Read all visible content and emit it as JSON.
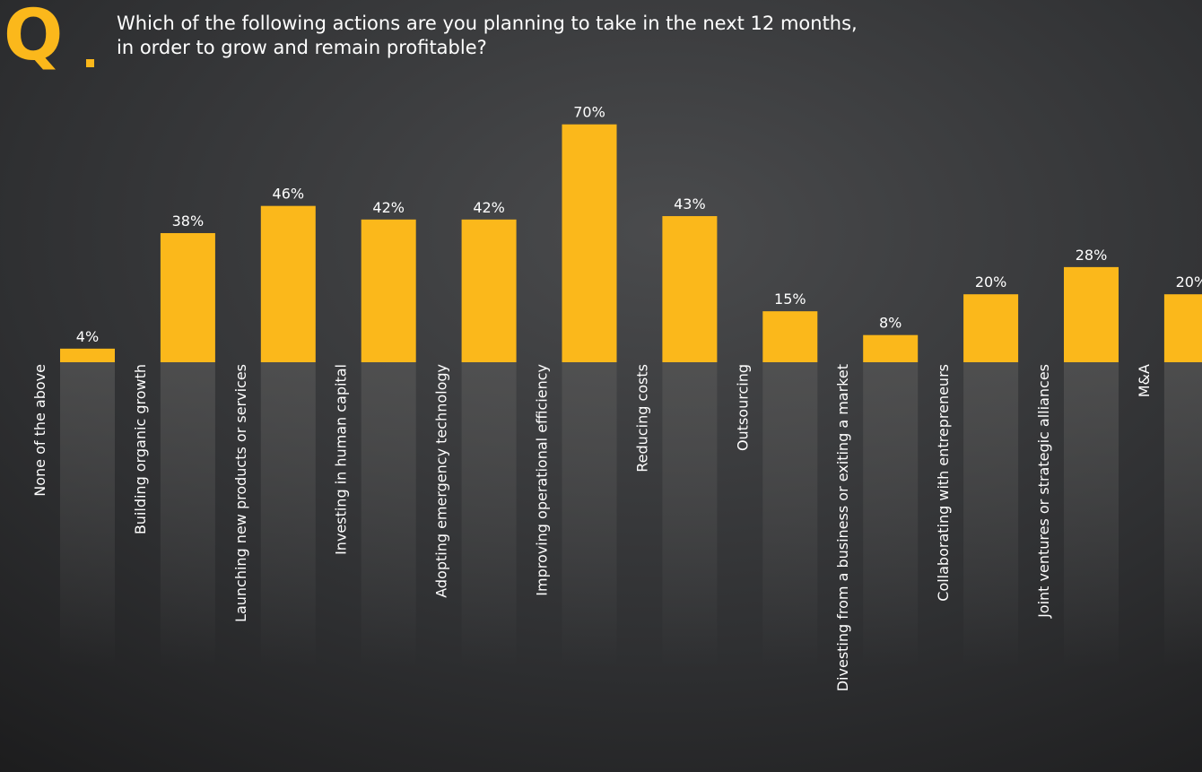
{
  "chart_data": {
    "type": "bar",
    "badge": "Q",
    "title_lines": [
      "Which of the following actions are you planning to take in the next 12 months,",
      "in order to grow and remain profitable?"
    ],
    "categories": [
      "None of the above",
      "Building organic growth",
      "Launching new products or services",
      "Investing in human capital",
      "Adopting emergency technology",
      "Improving operational efficiency",
      "Reducing costs",
      "Outsourcing",
      "Divesting from a business or exiting a market",
      "Collaborating with entrepreneurs",
      "Joint ventures or strategic alliances",
      "M&A"
    ],
    "values": [
      4,
      38,
      46,
      42,
      42,
      70,
      43,
      15,
      8,
      20,
      28,
      20
    ],
    "value_labels": [
      "4%",
      "38%",
      "46%",
      "42%",
      "42%",
      "70%",
      "43%",
      "15%",
      "8%",
      "20%",
      "28%",
      "20%"
    ],
    "color": "#fbb81b"
  }
}
